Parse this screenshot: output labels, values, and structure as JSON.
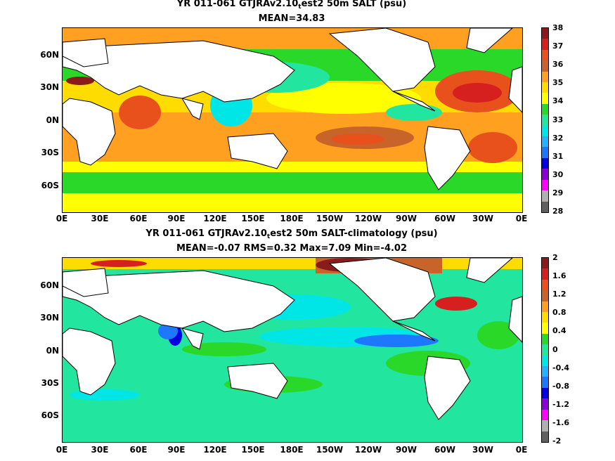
{
  "top": {
    "title_pre": "YR 011-061 GTJRAv2.10",
    "title_sub": "t",
    "title_post": "est2 50m SALT (psu)",
    "stats": "MEAN=34.83",
    "colorbar": {
      "labels": [
        "38",
        "37",
        "36",
        "35",
        "34",
        "33",
        "32",
        "31",
        "30",
        "29",
        "28"
      ],
      "colors": [
        "#8b1a1a",
        "#d62020",
        "#e8501c",
        "#c8642a",
        "#ffa020",
        "#ffdc00",
        "#ffff00",
        "#2ad82a",
        "#22e6a0",
        "#00e6e6",
        "#22b4ff",
        "#1e78ff",
        "#0000e0",
        "#8c00d8",
        "#ff00ff",
        "#b0b0b0",
        "#606060"
      ]
    }
  },
  "bottom": {
    "title_pre": "YR 011-061 GTJRAv2.10",
    "title_sub": "t",
    "title_post": "est2 50m SALT-climatology (psu)",
    "stats": "MEAN=-0.07   RMS=0.32   Max=7.09   Min=-4.02",
    "colorbar": {
      "labels": [
        "2",
        "1.6",
        "1.2",
        "0.8",
        "0.4",
        "0",
        "-0.4",
        "-0.8",
        "-1.2",
        "-1.6",
        "-2"
      ],
      "colors": [
        "#8b1a1a",
        "#d62020",
        "#e8501c",
        "#c8642a",
        "#ffa020",
        "#ffdc00",
        "#ffff00",
        "#2ad82a",
        "#22e6a0",
        "#00e6e6",
        "#22b4ff",
        "#1e78ff",
        "#0000e0",
        "#8c00d8",
        "#ff00ff",
        "#b0b0b0",
        "#606060"
      ]
    }
  },
  "axes": {
    "x_labels": [
      "0E",
      "30E",
      "60E",
      "90E",
      "120E",
      "150E",
      "180E",
      "150W",
      "120W",
      "90W",
      "60W",
      "30W",
      "0E"
    ],
    "y_labels": [
      "60N",
      "30N",
      "0N",
      "30S",
      "60S"
    ]
  },
  "salinity_fields": {
    "top_mean_psu": 34.83,
    "bottom_mean_psu": -0.07,
    "bottom_rms_psu": 0.32,
    "bottom_max_psu": 7.09,
    "bottom_min_psu": -4.02
  }
}
